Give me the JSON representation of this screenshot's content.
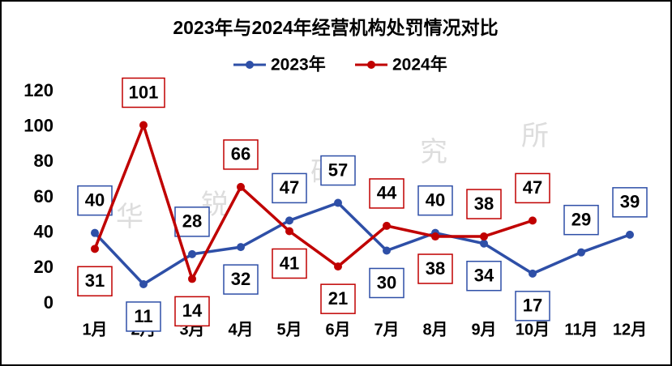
{
  "chart_data": {
    "type": "line",
    "title": "2023年与2024年经营机构处罚情况对比",
    "categories": [
      "1月",
      "2月",
      "3月",
      "4月",
      "5月",
      "6月",
      "7月",
      "8月",
      "9月",
      "10月",
      "11月",
      "12月"
    ],
    "series": [
      {
        "name": "2023年",
        "color": "#2e4fa7",
        "values": [
          40,
          11,
          28,
          32,
          47,
          57,
          30,
          40,
          34,
          17,
          29,
          39
        ]
      },
      {
        "name": "2024年",
        "color": "#c00000",
        "values": [
          31,
          101,
          14,
          66,
          41,
          21,
          44,
          38,
          38,
          47,
          null,
          null
        ]
      }
    ],
    "ylim": [
      0,
      120
    ],
    "yticks": [
      0,
      20,
      40,
      60,
      80,
      100,
      120
    ],
    "grid": false,
    "legend": "top",
    "watermark": [
      "华",
      "锐",
      "研",
      "究",
      "所"
    ]
  }
}
